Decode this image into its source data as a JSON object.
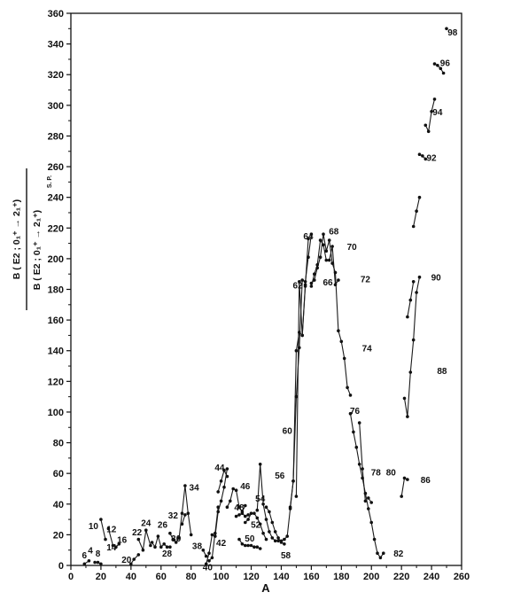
{
  "chart_data": {
    "type": "line",
    "xlabel": "A",
    "ylabel": {
      "numerator": "B ( E2 ; 0₁⁺ → 2₁⁺)",
      "denominator": "B ( E2 ; 0₁⁺ → 2₁⁺)",
      "denominator_subscript": "S. P."
    },
    "xlim": [
      0,
      260
    ],
    "ylim": [
      0,
      360
    ],
    "x_ticks": [
      0,
      20,
      40,
      60,
      80,
      100,
      120,
      140,
      160,
      180,
      200,
      220,
      240,
      260
    ],
    "y_ticks": [
      0,
      20,
      40,
      60,
      80,
      100,
      120,
      140,
      160,
      180,
      200,
      220,
      240,
      260,
      280,
      300,
      320,
      340,
      360
    ],
    "annotations": [
      {
        "text": "6",
        "x": 9,
        "y": 7
      },
      {
        "text": "4",
        "x": 13,
        "y": 10
      },
      {
        "text": "8",
        "x": 18,
        "y": 8
      },
      {
        "text": "10",
        "x": 15,
        "y": 26
      },
      {
        "text": "12",
        "x": 27,
        "y": 24
      },
      {
        "text": "14",
        "x": 27,
        "y": 12
      },
      {
        "text": "16",
        "x": 34,
        "y": 17
      },
      {
        "text": "20",
        "x": 37,
        "y": 4
      },
      {
        "text": "22",
        "x": 44,
        "y": 22
      },
      {
        "text": "24",
        "x": 50,
        "y": 28
      },
      {
        "text": "26",
        "x": 61,
        "y": 27
      },
      {
        "text": "28",
        "x": 64,
        "y": 8
      },
      {
        "text": "30",
        "x": 70,
        "y": 18
      },
      {
        "text": "32",
        "x": 68,
        "y": 33
      },
      {
        "text": "34",
        "x": 82,
        "y": 51
      },
      {
        "text": "38",
        "x": 84,
        "y": 13
      },
      {
        "text": "40",
        "x": 91,
        "y": -1
      },
      {
        "text": "42",
        "x": 100,
        "y": 15
      },
      {
        "text": "44",
        "x": 99,
        "y": 64
      },
      {
        "text": "46",
        "x": 116,
        "y": 52
      },
      {
        "text": "48",
        "x": 112,
        "y": 38
      },
      {
        "text": "50",
        "x": 119,
        "y": 18
      },
      {
        "text": "52",
        "x": 123,
        "y": 27
      },
      {
        "text": "54",
        "x": 126,
        "y": 44
      },
      {
        "text": "56",
        "x": 139,
        "y": 59
      },
      {
        "text": "58",
        "x": 143,
        "y": 7
      },
      {
        "text": "60",
        "x": 144,
        "y": 88
      },
      {
        "text": "62",
        "x": 151,
        "y": 183
      },
      {
        "text": "64",
        "x": 158,
        "y": 215
      },
      {
        "text": "66",
        "x": 171,
        "y": 185
      },
      {
        "text": "68",
        "x": 175,
        "y": 218
      },
      {
        "text": "70",
        "x": 187,
        "y": 208
      },
      {
        "text": "72",
        "x": 196,
        "y": 187
      },
      {
        "text": "74",
        "x": 197,
        "y": 142
      },
      {
        "text": "76",
        "x": 189,
        "y": 101
      },
      {
        "text": "78",
        "x": 203,
        "y": 61
      },
      {
        "text": "80",
        "x": 213,
        "y": 61
      },
      {
        "text": "82",
        "x": 218,
        "y": 8
      },
      {
        "text": "86",
        "x": 236,
        "y": 56
      },
      {
        "text": "88",
        "x": 247,
        "y": 127
      },
      {
        "text": "90",
        "x": 243,
        "y": 188
      },
      {
        "text": "92",
        "x": 240,
        "y": 266
      },
      {
        "text": "94",
        "x": 244,
        "y": 296
      },
      {
        "text": "96",
        "x": 249,
        "y": 328
      },
      {
        "text": "98",
        "x": 254,
        "y": 348
      }
    ],
    "series": [
      {
        "x": [
          9,
          12
        ],
        "y": [
          1,
          3
        ]
      },
      {
        "x": [
          16,
          18,
          20
        ],
        "y": [
          2,
          2,
          1
        ]
      },
      {
        "x": [
          20,
          23
        ],
        "y": [
          30,
          17
        ]
      },
      {
        "x": [
          25,
          28
        ],
        "y": [
          24,
          13
        ]
      },
      {
        "x": [
          30,
          32
        ],
        "y": [
          12,
          14
        ]
      },
      {
        "x": [
          40,
          42,
          45
        ],
        "y": [
          1,
          4,
          7
        ]
      },
      {
        "x": [
          45,
          48,
          50,
          53
        ],
        "y": [
          17,
          10,
          23,
          13
        ]
      },
      {
        "x": [
          54,
          56,
          58,
          60,
          62,
          64,
          66
        ],
        "y": [
          15,
          12,
          19,
          12,
          14,
          12,
          12
        ]
      },
      {
        "x": [
          66,
          68,
          70,
          72,
          74,
          76,
          78,
          80
        ],
        "y": [
          21,
          17,
          15,
          18,
          34,
          52,
          34,
          20
        ]
      },
      {
        "x": [
          74,
          76
        ],
        "y": [
          27,
          33
        ]
      },
      {
        "x": [
          88,
          90
        ],
        "y": [
          10,
          6
        ]
      },
      {
        "x": [
          92,
          94,
          96,
          98
        ],
        "y": [
          3,
          5,
          21,
          38
        ]
      },
      {
        "x": [
          98,
          100,
          102,
          104
        ],
        "y": [
          48,
          55,
          62,
          58
        ]
      },
      {
        "x": [
          90,
          92,
          94,
          96,
          98,
          100,
          102,
          104
        ],
        "y": [
          1,
          8,
          20,
          19,
          35,
          42,
          51,
          63
        ]
      },
      {
        "x": [
          104,
          106,
          108,
          110,
          112,
          114,
          116
        ],
        "y": [
          38,
          42,
          50,
          49,
          38,
          35,
          39
        ]
      },
      {
        "x": [
          110,
          112,
          114,
          116,
          118
        ],
        "y": [
          32,
          33,
          34,
          32,
          33
        ]
      },
      {
        "x": [
          112,
          114,
          116,
          118,
          120,
          122,
          124,
          126
        ],
        "y": [
          17,
          14,
          13,
          13,
          13,
          12,
          12,
          11
        ]
      },
      {
        "x": [
          116,
          118,
          120,
          122,
          124,
          126,
          128,
          130
        ],
        "y": [
          28,
          30,
          34,
          34,
          31,
          27,
          21,
          17
        ]
      },
      {
        "x": [
          124,
          126,
          128,
          130,
          132,
          134,
          136,
          138
        ],
        "y": [
          36,
          66,
          40,
          30,
          22,
          18,
          16,
          16
        ]
      },
      {
        "x": [
          130,
          132,
          134,
          136,
          138,
          140,
          142
        ],
        "y": [
          38,
          35,
          28,
          22,
          18,
          15,
          14
        ]
      },
      {
        "x": [
          140,
          142,
          144,
          146,
          148,
          150,
          152,
          154,
          156,
          158,
          160
        ],
        "y": [
          16,
          17,
          19,
          37,
          55,
          110,
          142,
          186,
          185,
          201,
          216
        ]
      },
      {
        "x": [
          146,
          148,
          150,
          152,
          154,
          156
        ],
        "y": [
          38,
          55,
          140,
          152,
          150,
          183
        ]
      },
      {
        "x": [
          150,
          152,
          154,
          156,
          158
        ],
        "y": [
          45,
          185,
          150,
          182,
          213
        ]
      },
      {
        "x": [
          160,
          162,
          164,
          166,
          168,
          170,
          172,
          174,
          176,
          178
        ],
        "y": [
          182,
          190,
          196,
          212,
          209,
          199,
          199,
          208,
          183,
          186
        ]
      },
      {
        "x": [
          160,
          162,
          164,
          166,
          168,
          170,
          172,
          174,
          176,
          178,
          180,
          182,
          184,
          186
        ],
        "y": [
          184,
          186,
          194,
          201,
          216,
          205,
          212,
          197,
          191,
          153,
          146,
          135,
          116,
          111
        ]
      },
      {
        "x": [
          186,
          188,
          190,
          192,
          194,
          196,
          198,
          200,
          202,
          204,
          206,
          208
        ],
        "y": [
          99,
          87,
          77,
          66,
          57,
          47,
          37,
          28,
          17,
          8,
          5,
          8
        ]
      },
      {
        "x": [
          192,
          194,
          196
        ],
        "y": [
          93,
          63,
          42
        ]
      },
      {
        "x": [
          198,
          200
        ],
        "y": [
          44,
          41
        ]
      },
      {
        "x": [
          220,
          222,
          224
        ],
        "y": [
          45,
          57,
          56
        ]
      },
      {
        "x": [
          222,
          224,
          226,
          228,
          230,
          232
        ],
        "y": [
          109,
          97,
          126,
          147,
          178,
          188
        ]
      },
      {
        "x": [
          224,
          226,
          228
        ],
        "y": [
          162,
          173,
          185
        ]
      },
      {
        "x": [
          228,
          230,
          232
        ],
        "y": [
          221,
          231,
          240
        ]
      },
      {
        "x": [
          232,
          234,
          236
        ],
        "y": [
          268,
          267,
          265
        ]
      },
      {
        "x": [
          236,
          238,
          240,
          242
        ],
        "y": [
          287,
          283,
          296,
          304
        ]
      },
      {
        "x": [
          242,
          244,
          246,
          248
        ],
        "y": [
          327,
          326,
          324,
          321
        ]
      },
      {
        "x": [
          250
        ],
        "y": [
          350
        ]
      }
    ]
  }
}
